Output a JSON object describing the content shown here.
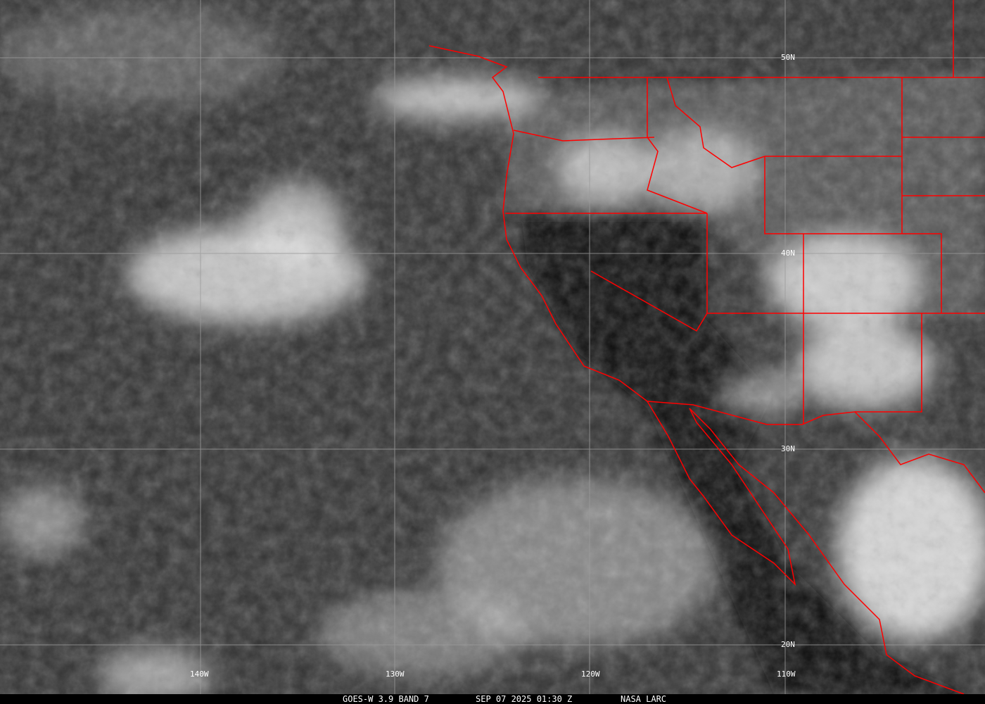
{
  "caption": {
    "source": "GOES-W 3.9 BAND 7",
    "datetime": "SEP 07 2025 01:30 Z",
    "credit": "NASA LARC"
  },
  "grid": {
    "latitudes": [
      "50N",
      "40N",
      "30N",
      "20N"
    ],
    "longitudes": [
      "140W",
      "130W",
      "120W",
      "110W"
    ]
  },
  "colors": {
    "borders": "#ff0000",
    "gridlines": "#9a9a9a",
    "labels": "#ffffff"
  }
}
